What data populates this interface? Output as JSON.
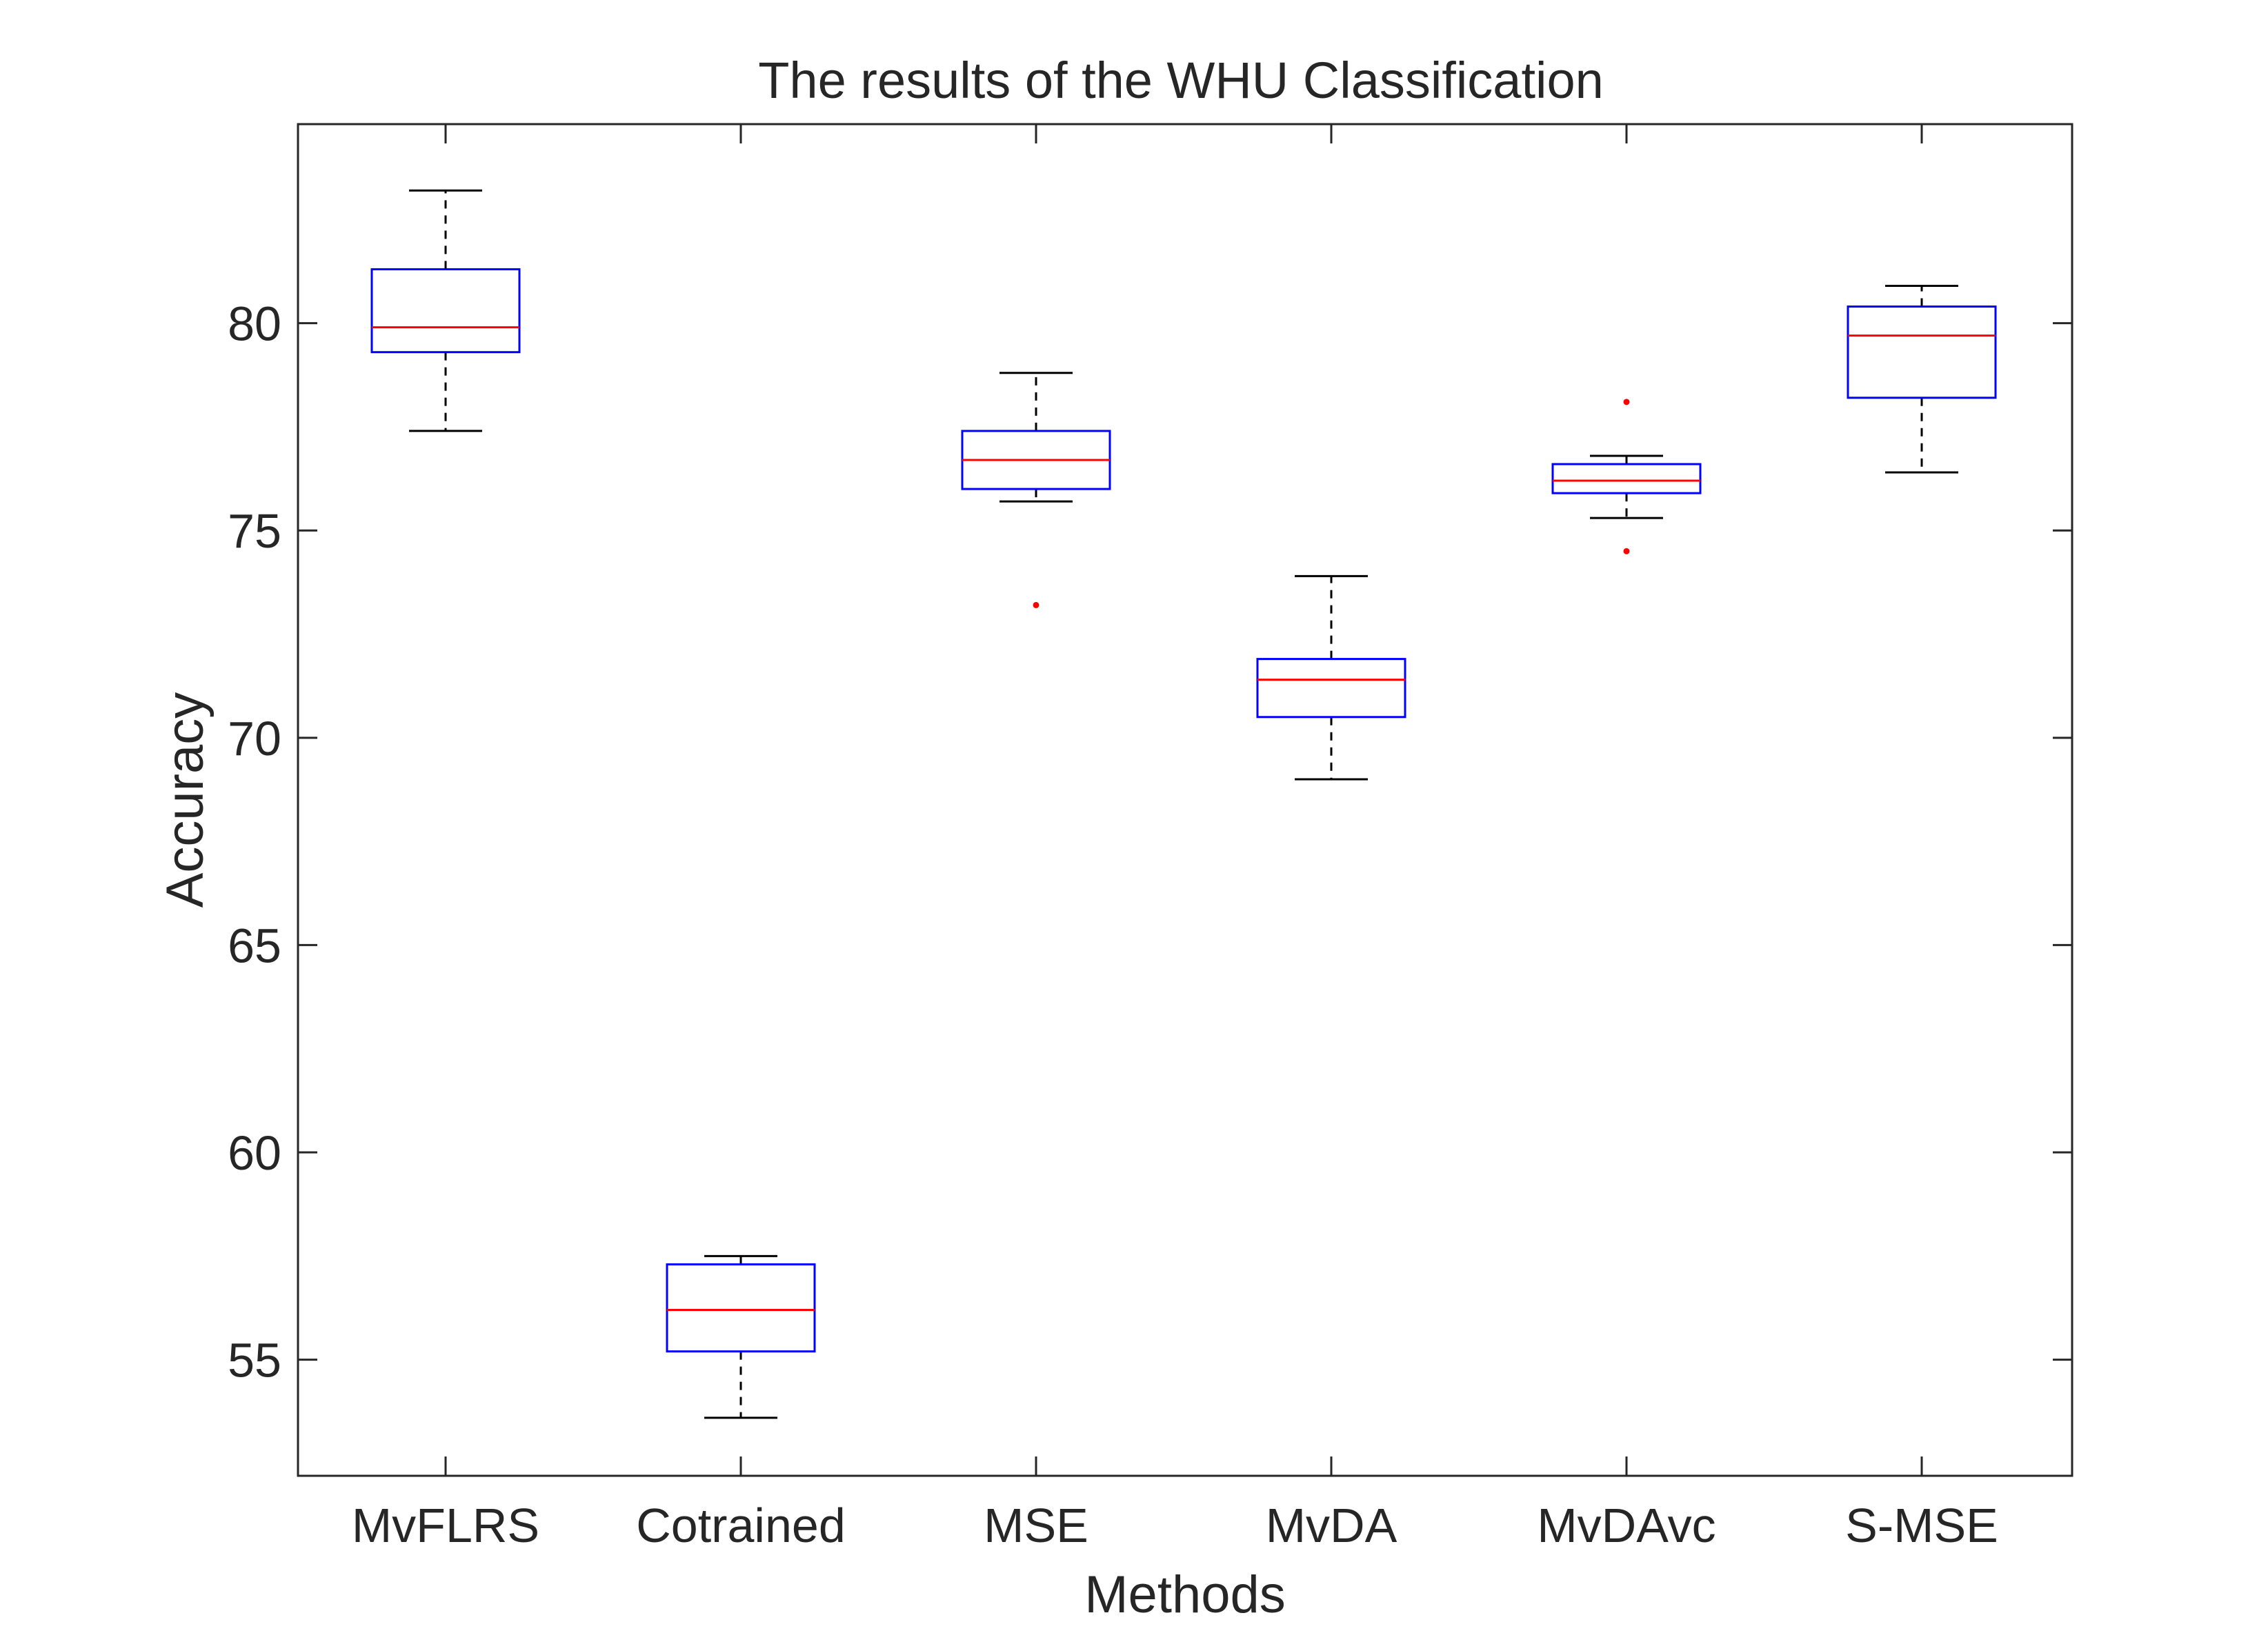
{
  "chart_data": {
    "type": "box",
    "title": "The results of the WHU Classification",
    "xlabel": "Methods",
    "ylabel": "Accuracy",
    "ylim": [
      52.2,
      84.8
    ],
    "yticks": [
      55,
      60,
      65,
      70,
      75,
      80
    ],
    "grid": false,
    "categories": [
      "MvFLRS",
      "Cotrained",
      "MSE",
      "MvDA",
      "MvDAvc",
      "S-MSE"
    ],
    "boxes": [
      {
        "whisker_low": 77.4,
        "q1": 79.3,
        "median": 79.9,
        "q3": 81.3,
        "whisker_high": 83.2,
        "outliers": []
      },
      {
        "whisker_low": 53.6,
        "q1": 55.2,
        "median": 56.2,
        "q3": 57.3,
        "whisker_high": 57.5,
        "outliers": []
      },
      {
        "whisker_low": 75.7,
        "q1": 76.0,
        "median": 76.7,
        "q3": 77.4,
        "whisker_high": 78.8,
        "outliers": [
          73.2
        ]
      },
      {
        "whisker_low": 69.0,
        "q1": 70.5,
        "median": 71.4,
        "q3": 71.9,
        "whisker_high": 73.9,
        "outliers": []
      },
      {
        "whisker_low": 75.3,
        "q1": 75.9,
        "median": 76.2,
        "q3": 76.6,
        "whisker_high": 76.8,
        "outliers": [
          78.1,
          74.5
        ]
      },
      {
        "whisker_low": 76.4,
        "q1": 78.2,
        "median": 79.7,
        "q3": 80.4,
        "whisker_high": 80.9,
        "outliers": []
      }
    ],
    "colors": {
      "box": "#0000ff",
      "median": "#ff0000",
      "whisker": "#000000",
      "outlier": "#ff0000",
      "axis": "#262626"
    }
  }
}
